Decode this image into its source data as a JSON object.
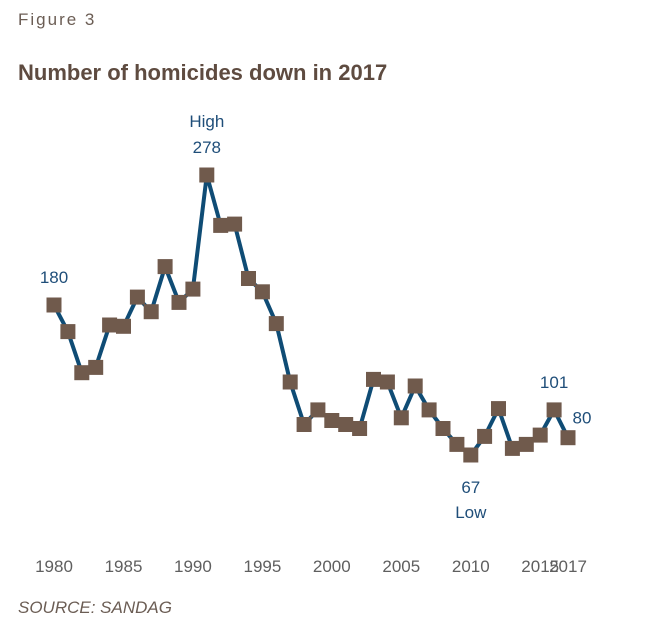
{
  "figure_label": "Figure 3",
  "source": "SOURCE: SANDAG",
  "colors": {
    "line": "#0f4c75",
    "marker": "#705a4c",
    "title": "#5e4b40",
    "annotation": "#1f4e79",
    "tick": "#5f5f5f"
  },
  "chart_data": {
    "type": "line",
    "title": "Number of homicides down in 2017",
    "xlabel": "",
    "ylabel": "",
    "x_ticks": [
      "1980",
      "1985",
      "1990",
      "1995",
      "2000",
      "2005",
      "2010",
      "2015",
      "2017"
    ],
    "x_tick_values": [
      1980,
      1985,
      1990,
      1995,
      2000,
      2005,
      2010,
      2015,
      2017
    ],
    "xlim": [
      1980,
      2017
    ],
    "ylim": [
      67,
      278
    ],
    "grid": false,
    "series": [
      {
        "x": [
          1980,
          1981,
          1982,
          1983,
          1984,
          1985,
          1986,
          1987,
          1988,
          1989,
          1990,
          1991,
          1992,
          1993,
          1994,
          1995,
          1996,
          1997,
          1998,
          1999,
          2000,
          2001,
          2002,
          2003,
          2004,
          2005,
          2006,
          2007,
          2008,
          2009,
          2010,
          2011,
          2012,
          2013,
          2014,
          2015,
          2016,
          2017
        ],
        "values": [
          180,
          160,
          129,
          133,
          165,
          164,
          186,
          175,
          209,
          182,
          192,
          278,
          240,
          241,
          200,
          190,
          166,
          122,
          90,
          101,
          93,
          90,
          87,
          124,
          122,
          95,
          119,
          101,
          87,
          75,
          67,
          81,
          102,
          72,
          75,
          82,
          101,
          80
        ]
      }
    ],
    "annotations": [
      {
        "x": 1980,
        "text": "180",
        "position": "above"
      },
      {
        "x": 1991,
        "text": "High",
        "position": "above2"
      },
      {
        "x": 1991,
        "text": "278",
        "position": "above"
      },
      {
        "x": 2010,
        "text": "67",
        "position": "below"
      },
      {
        "x": 2010,
        "text": "Low",
        "position": "below2"
      },
      {
        "x": 2016,
        "text": "101",
        "position": "above"
      },
      {
        "x": 2017,
        "text": "80",
        "position": "above-right"
      }
    ]
  }
}
